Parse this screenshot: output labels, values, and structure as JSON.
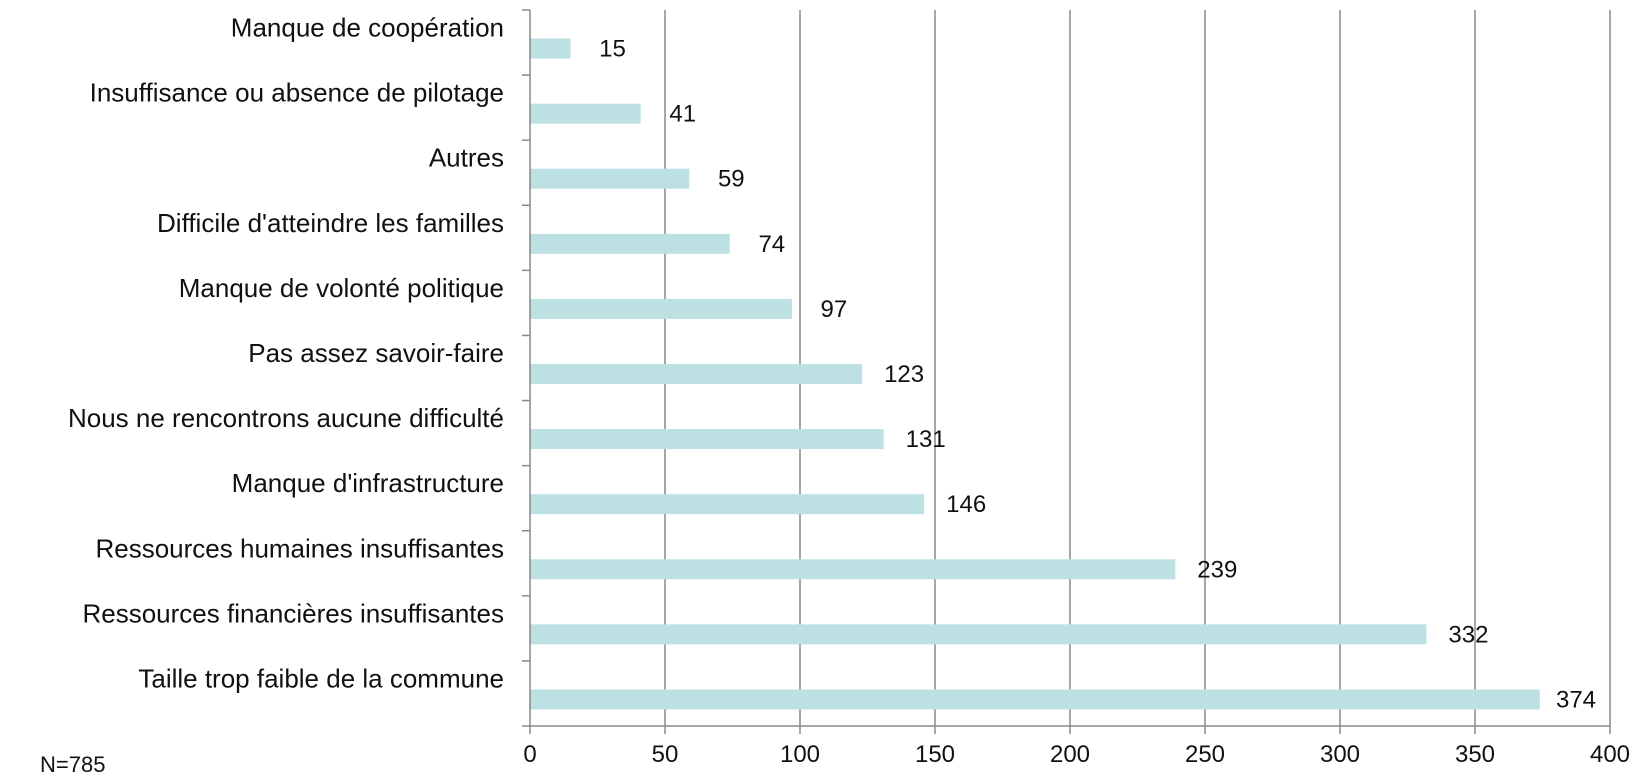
{
  "chart_data": {
    "type": "bar",
    "orientation": "horizontal",
    "categories": [
      "Taille trop faible de la commune",
      "Ressources financières insuffisantes",
      "Ressources humaines insuffisantes",
      "Manque d'infrastructure",
      "Nous ne rencontrons aucune difficulté",
      "Pas assez savoir-faire",
      "Manque de volonté politique",
      "Difficile d'atteindre les familles",
      "Autres",
      "Insuffisance ou absence de pilotage",
      "Manque de coopération"
    ],
    "values": [
      374,
      332,
      239,
      146,
      131,
      123,
      97,
      74,
      59,
      41,
      15
    ],
    "data_labels": [
      "374",
      "332",
      "239",
      "146",
      "131",
      "123",
      "97",
      "74",
      "59",
      "41",
      "15"
    ],
    "x_ticks": [
      "0",
      "50",
      "100",
      "150",
      "200",
      "250",
      "300",
      "350",
      "400"
    ],
    "xlim": [
      0,
      400
    ],
    "vertical_grid": true,
    "bar_color": "#bde0e3",
    "grid_color": "#888888",
    "legend": "none"
  },
  "note": "N=785"
}
